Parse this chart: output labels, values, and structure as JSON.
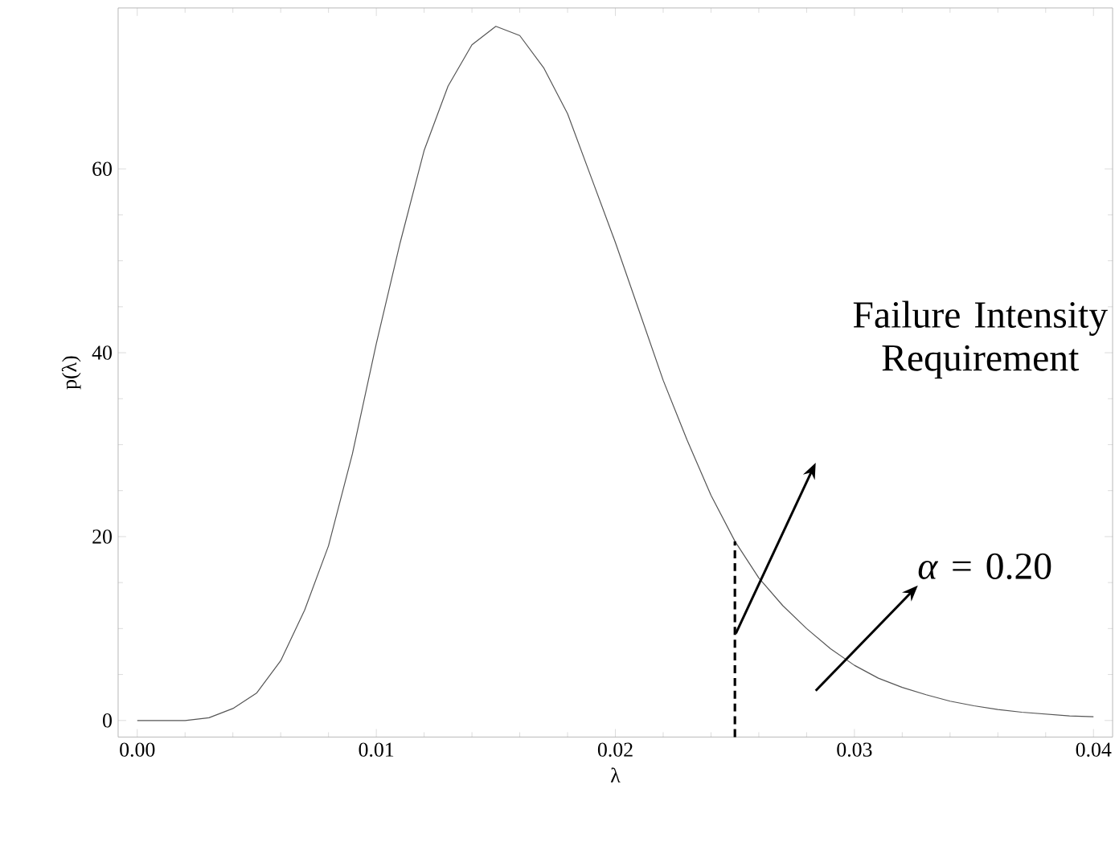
{
  "chart_data": {
    "type": "line",
    "xlabel": "λ",
    "ylabel": "p(λ)",
    "xlim": [
      -0.0008,
      0.0408
    ],
    "ylim": [
      -1.8,
      77.5
    ],
    "xticks": [
      {
        "value": 0,
        "label": "0.00"
      },
      0.01,
      0.02,
      0.03,
      0.04
    ],
    "yticks": [
      0,
      20,
      40,
      60
    ],
    "grid": false,
    "marker": "none",
    "series": [
      {
        "color": "#555555",
        "line_style": "solid",
        "x": [
          0,
          0.002,
          0.003,
          0.004,
          0.005,
          0.006,
          0.007,
          0.008,
          0.009,
          0.01,
          0.011,
          0.012,
          0.013,
          0.014,
          0.015,
          0.016,
          0.017,
          0.018,
          0.019,
          0.02,
          0.021,
          0.022,
          0.023,
          0.024,
          0.025,
          0.026,
          0.027,
          0.028,
          0.029,
          0.03,
          0.031,
          0.032,
          0.033,
          0.034,
          0.035,
          0.036,
          0.037,
          0.038,
          0.039,
          0.04
        ],
        "values": [
          0,
          0,
          0.3,
          1.3,
          3,
          6.5,
          12,
          19,
          29,
          41,
          52,
          62,
          69,
          73.5,
          75.5,
          74.5,
          71,
          66,
          59,
          52,
          44.5,
          37,
          30.5,
          24.5,
          19.5,
          15.5,
          12.5,
          10,
          7.8,
          6,
          4.6,
          3.6,
          2.8,
          2.1,
          1.6,
          1.2,
          0.9,
          0.7,
          0.5,
          0.4
        ]
      },
      {
        "color": "#000000",
        "line_style": "dashed",
        "x": [
          0.025,
          0.025
        ],
        "values": [
          -1.8,
          19.5
        ]
      }
    ],
    "annotations": [
      "Failure Intensity Requirement",
      "*α* = 0.20"
    ]
  }
}
